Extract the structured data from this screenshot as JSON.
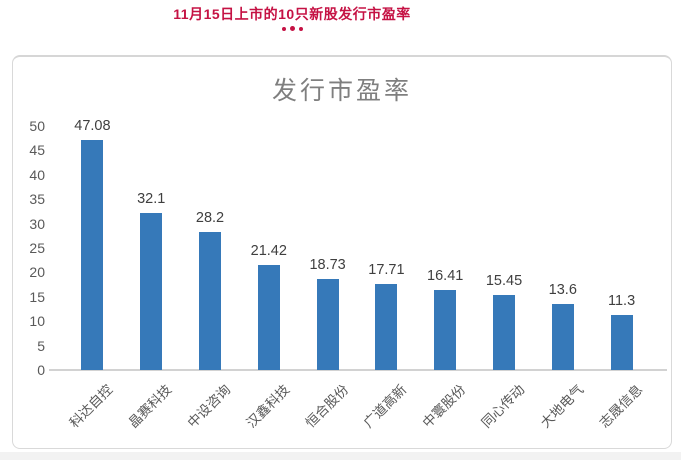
{
  "page": {
    "header_title": "11月15日上市的10只新股发行市盈率",
    "header_color": "#c51244",
    "dots_icon": "three-dots-separator"
  },
  "chart_data": {
    "type": "bar",
    "title": "发行市盈率",
    "categories": [
      "科达自控",
      "晶赛科技",
      "中设咨询",
      "汉鑫科技",
      "恒合股份",
      "广道高新",
      "中寰股份",
      "同心传动",
      "大地电气",
      "志晟信息"
    ],
    "values": [
      47.08,
      32.1,
      28.2,
      21.42,
      18.73,
      17.71,
      16.41,
      15.45,
      13.6,
      11.3
    ],
    "value_labels": [
      "47.08",
      "32.1",
      "28.2",
      "21.42",
      "18.73",
      "17.71",
      "16.41",
      "15.45",
      "13.6",
      "11.3"
    ],
    "ylim": [
      0,
      50
    ],
    "yticks": [
      0,
      5,
      10,
      15,
      20,
      25,
      30,
      35,
      40,
      45,
      50
    ],
    "grid": false,
    "legend_position": "none",
    "data_labels_on": true,
    "colors": {
      "bar": "#3679b9",
      "title": "#7f7f7f",
      "tick_label": "#595959",
      "data_label": "#3f3f3f",
      "category_label": "#595959",
      "axis_line": "#d2d2d2"
    }
  }
}
